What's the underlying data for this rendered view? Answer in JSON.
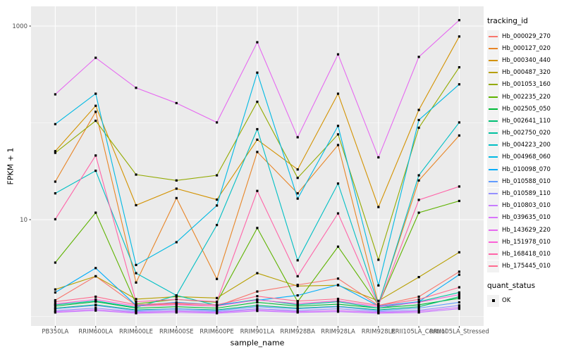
{
  "legend": {
    "tracking_title": "tracking_id",
    "quant_title": "quant_status",
    "quant_label": "OK"
  },
  "colors": {
    "panel_background": "#EBEBEB",
    "gridline": "#FFFFFF",
    "tick_text": "#4D4D4D",
    "point": "#000000",
    "legend_key_background": "#F2F2F2"
  },
  "chart_data": {
    "type": "line",
    "title": "",
    "xlabel": "sample_name",
    "ylabel": "FPKM + 1",
    "y_scale": "log10",
    "y_ticks": [
      1000,
      10
    ],
    "y_minor_gridlines": [
      1,
      100
    ],
    "ylim_log": [
      0.9,
      1500
    ],
    "grid": true,
    "legend_position": "right",
    "point_marker": "small-black-square",
    "quant_status_all_points": "OK",
    "categories": [
      "PB350LA",
      "RRIM600LA",
      "RRIM600LE",
      "RRIM600SE",
      "RRIM600PE",
      "RRIM901LA",
      "RRIM928BA",
      "RRIM928LA",
      "RRIM928LE",
      "RRII105LA_Control",
      "RRII105LA_Stressed"
    ],
    "series": [
      {
        "name": "Hb_000029_270",
        "color": "#F8766D",
        "values": [
          1.47,
          2.6,
          1.3,
          1.35,
          1.28,
          1.81,
          2.12,
          2.46,
          1.3,
          1.6,
          2.9
        ]
      },
      {
        "name": "Hb_000127_020",
        "color": "#E88526",
        "values": [
          24.7,
          130,
          2.24,
          16.7,
          2.44,
          50,
          18.7,
          59,
          1.35,
          25.4,
          74
        ]
      },
      {
        "name": "Hb_000340_440",
        "color": "#D39200",
        "values": [
          51,
          150,
          14.1,
          20.9,
          16.1,
          67,
          33,
          200,
          13.5,
          136,
          780
        ]
      },
      {
        "name": "Hb_000487_320",
        "color": "#B79F00",
        "values": [
          1.9,
          2.6,
          1.51,
          1.6,
          1.55,
          2.8,
          2.06,
          2.1,
          1.45,
          2.55,
          4.6
        ]
      },
      {
        "name": "Hb_001053_160",
        "color": "#93AA00",
        "values": [
          49,
          105,
          29.2,
          25.4,
          28.7,
          165,
          27,
          76,
          3.85,
          89,
          375
        ]
      },
      {
        "name": "Hb_002235_220",
        "color": "#5EB300",
        "values": [
          3.6,
          11.8,
          1.35,
          1.5,
          1.4,
          8.2,
          1.42,
          5.26,
          1.32,
          11.8,
          15.6
        ]
      },
      {
        "name": "Hb_002505_050",
        "color": "#00BA38",
        "values": [
          1.28,
          1.42,
          1.22,
          1.26,
          1.22,
          1.4,
          1.28,
          1.34,
          1.22,
          1.32,
          1.54
        ]
      },
      {
        "name": "Hb_002641_110",
        "color": "#00BF74",
        "values": [
          1.22,
          1.32,
          1.17,
          1.2,
          1.17,
          1.3,
          1.22,
          1.27,
          1.17,
          1.26,
          1.6
        ]
      },
      {
        "name": "Hb_002750_020",
        "color": "#00C19F",
        "values": [
          1.32,
          1.45,
          1.24,
          1.65,
          1.3,
          1.5,
          1.32,
          1.42,
          1.22,
          1.42,
          1.77
        ]
      },
      {
        "name": "Hb_004223_200",
        "color": "#00BFC4",
        "values": [
          18.7,
          32,
          2.8,
          1.65,
          8.8,
          86,
          3.8,
          23.6,
          1.32,
          28.7,
          101
        ]
      },
      {
        "name": "Hb_004968_060",
        "color": "#00B9E3",
        "values": [
          97,
          200,
          3.4,
          5.85,
          14,
          330,
          16.5,
          93,
          2.09,
          107,
          250
        ]
      },
      {
        "name": "Hb_010098_070",
        "color": "#00ADFA",
        "values": [
          1.77,
          3.16,
          1.3,
          1.4,
          1.32,
          1.47,
          1.65,
          2.12,
          1.28,
          1.42,
          2.7
        ]
      },
      {
        "name": "Hb_010588_010",
        "color": "#619CFF",
        "values": [
          1.2,
          1.3,
          1.15,
          1.2,
          1.15,
          1.26,
          1.2,
          1.26,
          1.15,
          1.22,
          1.4
        ]
      },
      {
        "name": "Hb_010589_110",
        "color": "#9590FF",
        "values": [
          1.15,
          1.22,
          1.12,
          1.16,
          1.12,
          1.2,
          1.15,
          1.2,
          1.12,
          1.16,
          1.3
        ]
      },
      {
        "name": "Hb_010803_010",
        "color": "#C77CFF",
        "values": [
          1.1,
          1.15,
          1.08,
          1.1,
          1.08,
          1.14,
          1.1,
          1.12,
          1.08,
          1.1,
          1.2
        ]
      },
      {
        "name": "Hb_039635_010",
        "color": "#D974FB",
        "values": [
          1.12,
          1.18,
          1.1,
          1.13,
          1.1,
          1.17,
          1.12,
          1.15,
          1.1,
          1.13,
          1.24
        ]
      },
      {
        "name": "Hb_143629_220",
        "color": "#E669F0",
        "values": [
          197,
          470,
          230,
          160,
          101,
          680,
          71,
          510,
          44,
          480,
          1150
        ]
      },
      {
        "name": "Hb_151978_010",
        "color": "#FB61D7",
        "values": [
          1.35,
          1.5,
          1.28,
          1.32,
          1.28,
          1.48,
          1.36,
          1.45,
          1.26,
          1.4,
          1.68
        ]
      },
      {
        "name": "Hb_168418_010",
        "color": "#FF64A8",
        "values": [
          10.1,
          46,
          1.42,
          1.5,
          1.42,
          19.8,
          2.6,
          11.6,
          1.3,
          16,
          22
        ]
      },
      {
        "name": "Hb_175445_010",
        "color": "#FF6B8F",
        "values": [
          1.42,
          1.6,
          1.32,
          1.38,
          1.32,
          1.62,
          1.44,
          1.52,
          1.3,
          1.5,
          2.0
        ]
      }
    ]
  }
}
